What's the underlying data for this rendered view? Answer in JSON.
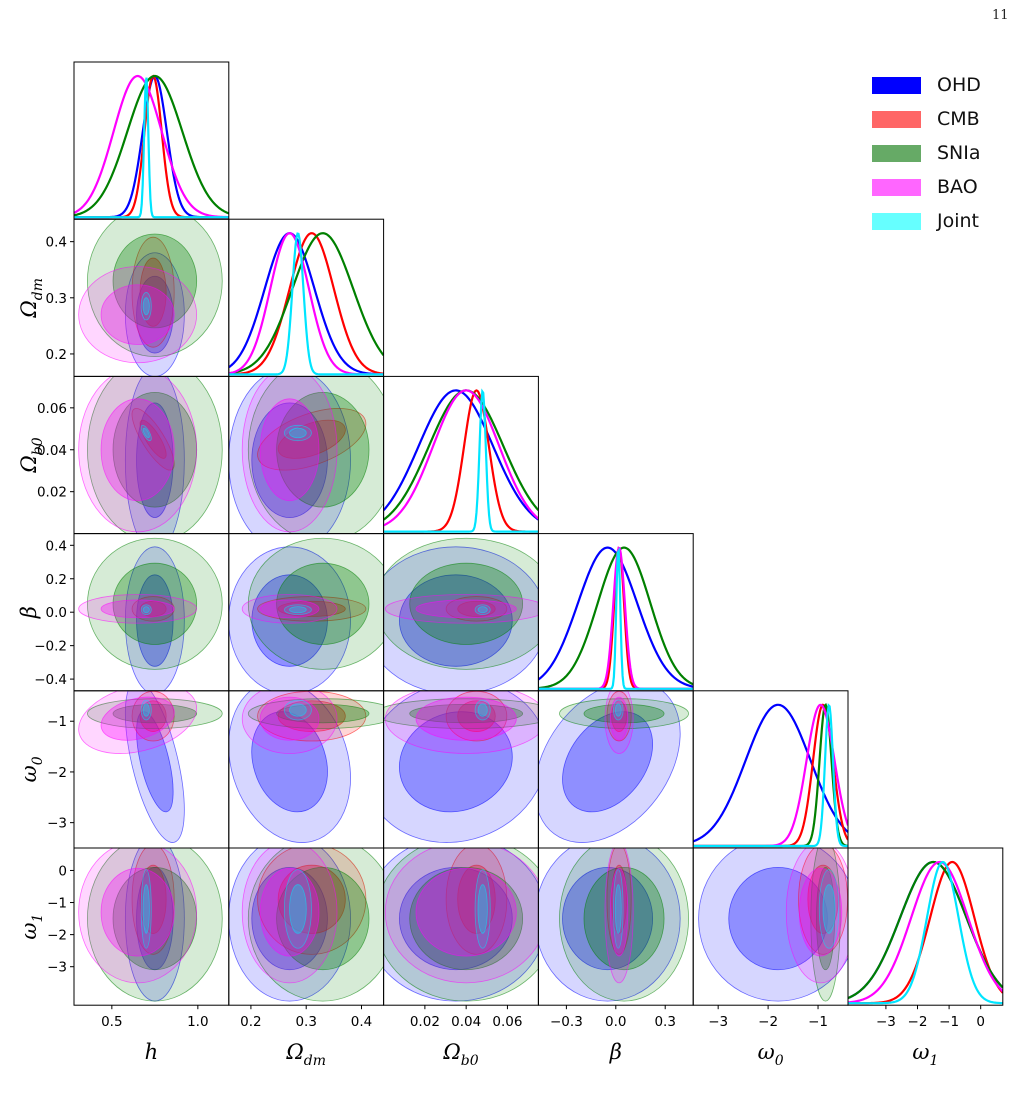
{
  "page_number": "11",
  "colors": {
    "OHD": "#0000ff",
    "CMB": "#ff0000",
    "SNIa": "#008000",
    "BAO": "#ff00ff",
    "Joint": "#00e5ff"
  },
  "legend": [
    {
      "name": "OHD",
      "color": "#0000ff"
    },
    {
      "name": "CMB",
      "color": "#ff6666"
    },
    {
      "name": "SNIa",
      "color": "#66aa66"
    },
    {
      "name": "BAO",
      "color": "#ff66ff"
    },
    {
      "name": "Joint",
      "color": "#66ffff"
    }
  ],
  "chart_data": {
    "type": "corner",
    "parameters": [
      {
        "key": "h",
        "label": "h",
        "sub": "",
        "range": [
          0.28,
          1.18
        ],
        "ticks": [
          0.5,
          1.0
        ],
        "tick_labels": [
          "0.5",
          "1.0"
        ]
      },
      {
        "key": "Omega_dm",
        "label": "Ω",
        "sub": "dm",
        "range": [
          0.16,
          0.44
        ],
        "ticks": [
          0.2,
          0.3,
          0.4
        ],
        "tick_labels": [
          "0.2",
          "0.3",
          "0.4"
        ]
      },
      {
        "key": "Omega_b0",
        "label": "Ω",
        "sub": "b0",
        "range": [
          0.0,
          0.075
        ],
        "ticks": [
          0.02,
          0.04,
          0.06
        ],
        "tick_labels": [
          "0.02",
          "0.04",
          "0.06"
        ]
      },
      {
        "key": "beta",
        "label": "β",
        "sub": "",
        "range": [
          -0.47,
          0.47
        ],
        "ticks": [
          -0.4,
          -0.2,
          0.0,
          0.2,
          0.4
        ],
        "x_ticks": [
          -0.3,
          0.0,
          0.3
        ],
        "tick_labels": [
          "−0.4",
          "−0.2",
          "0.0",
          "0.2",
          "0.4"
        ],
        "x_tick_labels": [
          "−0.3",
          "0.0",
          "0.3"
        ]
      },
      {
        "key": "omega_0",
        "label": "ω",
        "sub": "0",
        "range": [
          -3.5,
          -0.4
        ],
        "ticks": [
          -3,
          -2,
          -1
        ],
        "tick_labels": [
          "−3",
          "−2",
          "−1"
        ]
      },
      {
        "key": "omega_1",
        "label": "ω",
        "sub": "1",
        "range": [
          -4.2,
          0.7
        ],
        "ticks": [
          -3,
          -2,
          -1,
          0
        ],
        "tick_labels": [
          "−3",
          "−2",
          "−1",
          "0"
        ]
      }
    ],
    "series": [
      {
        "name": "OHD",
        "mean": [
          0.75,
          0.27,
          0.035,
          -0.05,
          -1.8,
          -1.5
        ],
        "sigma": [
          0.07,
          0.045,
          0.018,
          0.18,
          0.65,
          1.05
        ],
        "corr": {
          "0-4": -0.6,
          "3-4": 0.35,
          "1-4": -0.2,
          "2-4": 0.1
        }
      },
      {
        "name": "CMB",
        "mean": [
          0.74,
          0.31,
          0.045,
          0.02,
          -0.9,
          -0.9
        ],
        "sigma": [
          0.05,
          0.04,
          0.006,
          0.03,
          0.2,
          0.7
        ],
        "corr": {
          "0-2": -0.8,
          "1-2": 0.5
        }
      },
      {
        "name": "SNIa",
        "mean": [
          0.75,
          0.33,
          0.04,
          0.05,
          -0.85,
          -1.5
        ],
        "sigma": [
          0.16,
          0.055,
          0.018,
          0.16,
          0.12,
          1.05
        ]
      },
      {
        "name": "BAO",
        "mean": [
          0.65,
          0.27,
          0.04,
          0.02,
          -0.95,
          -1.3
        ],
        "sigma": [
          0.14,
          0.035,
          0.016,
          0.035,
          0.28,
          0.9
        ],
        "corr": {
          "0-4": 0.3
        }
      },
      {
        "name": "Joint",
        "mean": [
          0.7,
          0.285,
          0.048,
          0.015,
          -0.78,
          -1.2
        ],
        "sigma": [
          0.012,
          0.01,
          0.0015,
          0.012,
          0.08,
          0.5
        ],
        "corr": {
          "0-2": -0.7
        }
      }
    ]
  }
}
